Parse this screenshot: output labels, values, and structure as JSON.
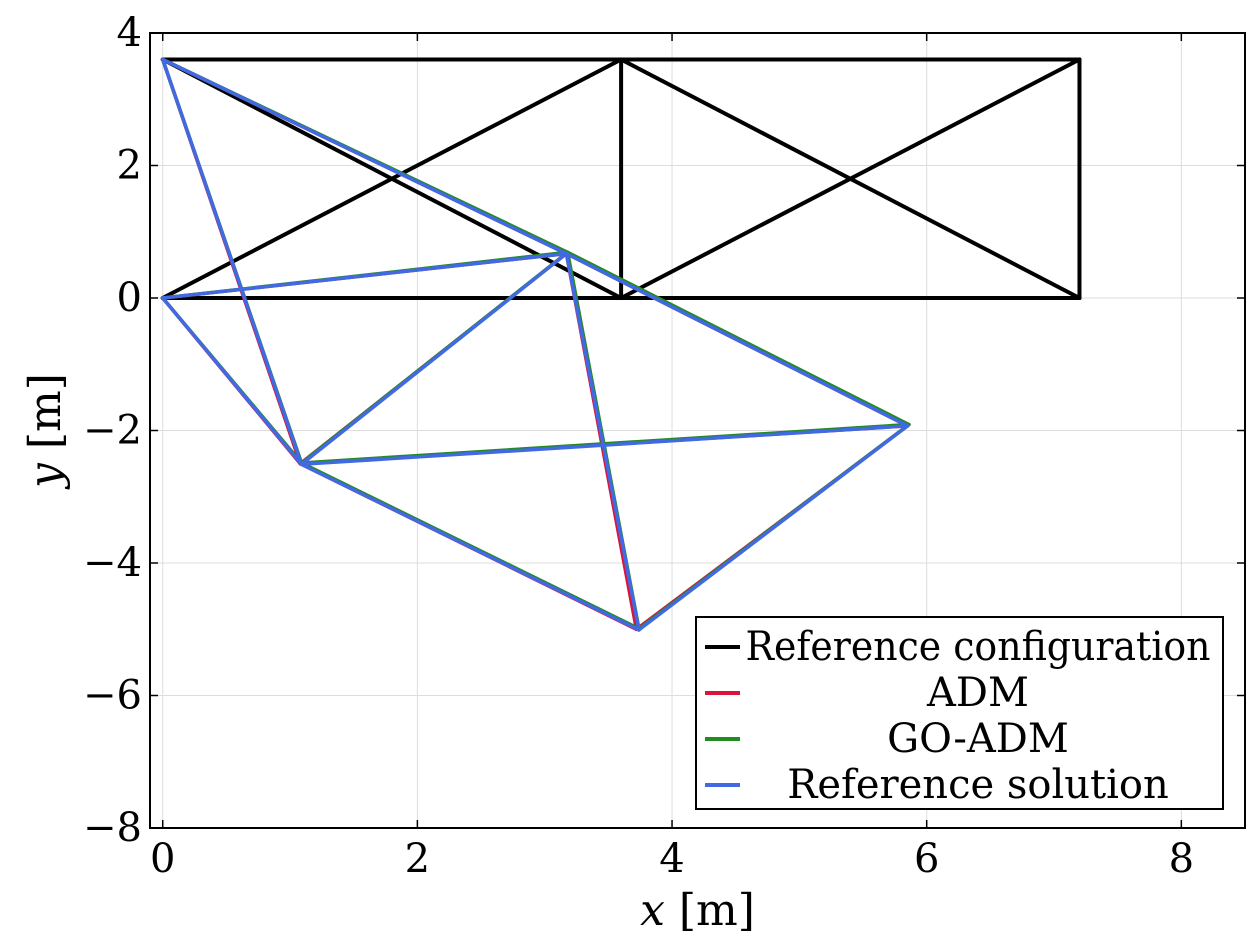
{
  "chart_data": {
    "type": "line",
    "title": "",
    "xlabel": {
      "symbol": "x",
      "unit": "[m]"
    },
    "ylabel": {
      "symbol": "y",
      "unit": "[m]"
    },
    "xlim": [
      -0.1,
      8.5
    ],
    "ylim": [
      -8,
      4
    ],
    "x_ticks": [
      0,
      2,
      4,
      6,
      8
    ],
    "x_tick_labels": [
      "0",
      "2",
      "4",
      "6",
      "8"
    ],
    "y_ticks": [
      4,
      2,
      0,
      -2,
      -4,
      -6,
      -8
    ],
    "y_tick_labels": [
      "4",
      "2",
      "0",
      "−2",
      "−4",
      "−6",
      "−8"
    ],
    "grid": true,
    "legend_position": "bottom-right",
    "series": [
      {
        "name": "Reference configuration",
        "color": "#000000",
        "nodes": [
          [
            0,
            0
          ],
          [
            3.6,
            0
          ],
          [
            7.2,
            0
          ],
          [
            0,
            3.6
          ],
          [
            3.6,
            3.6
          ],
          [
            7.2,
            3.6
          ]
        ],
        "members": [
          [
            0,
            1
          ],
          [
            1,
            2
          ],
          [
            3,
            4
          ],
          [
            4,
            5
          ],
          [
            1,
            4
          ],
          [
            2,
            5
          ],
          [
            0,
            4
          ],
          [
            3,
            1
          ],
          [
            1,
            5
          ],
          [
            4,
            2
          ]
        ]
      },
      {
        "name": "ADM",
        "color": "#dc143c",
        "nodes": [
          [
            0,
            0
          ],
          [
            1.08,
            -2.5
          ],
          [
            3.72,
            -5.0
          ],
          [
            0,
            3.6
          ],
          [
            3.17,
            0.67
          ],
          [
            5.85,
            -1.93
          ]
        ],
        "members": [
          [
            0,
            1
          ],
          [
            1,
            2
          ],
          [
            3,
            4
          ],
          [
            4,
            5
          ],
          [
            1,
            4
          ],
          [
            2,
            5
          ],
          [
            0,
            4
          ],
          [
            3,
            1
          ],
          [
            1,
            5
          ],
          [
            4,
            2
          ]
        ]
      },
      {
        "name": "GO-ADM",
        "color": "#228b22",
        "nodes": [
          [
            0,
            0
          ],
          [
            1.09,
            -2.49
          ],
          [
            3.74,
            -4.99
          ],
          [
            0,
            3.6
          ],
          [
            3.18,
            0.69
          ],
          [
            5.86,
            -1.91
          ]
        ],
        "members": [
          [
            0,
            1
          ],
          [
            1,
            2
          ],
          [
            3,
            4
          ],
          [
            4,
            5
          ],
          [
            1,
            4
          ],
          [
            2,
            5
          ],
          [
            0,
            4
          ],
          [
            3,
            1
          ],
          [
            1,
            5
          ],
          [
            4,
            2
          ]
        ]
      },
      {
        "name": "Reference solution",
        "color": "#4169e1",
        "nodes": [
          [
            0,
            0
          ],
          [
            1.09,
            -2.51
          ],
          [
            3.74,
            -5.01
          ],
          [
            0,
            3.6
          ],
          [
            3.17,
            0.67
          ],
          [
            5.85,
            -1.93
          ]
        ],
        "members": [
          [
            0,
            1
          ],
          [
            1,
            2
          ],
          [
            3,
            4
          ],
          [
            4,
            5
          ],
          [
            1,
            4
          ],
          [
            2,
            5
          ],
          [
            0,
            4
          ],
          [
            3,
            1
          ],
          [
            1,
            5
          ],
          [
            4,
            2
          ]
        ]
      }
    ]
  }
}
